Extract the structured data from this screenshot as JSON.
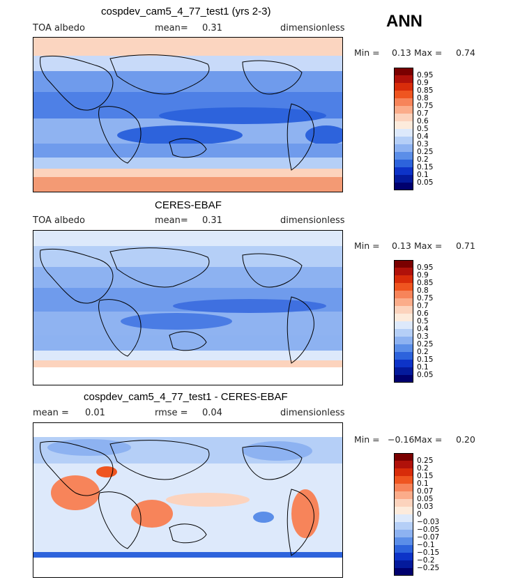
{
  "header": {
    "season": "ANN"
  },
  "panels": [
    {
      "title": "cospdev_cam5_4_77_test1 (yrs 2-3)",
      "left_label": "TOA albedo",
      "mean_label": "mean=",
      "mean_value": "0.31",
      "right_label": "dimensionless",
      "min_label": "Min =",
      "min_value": "0.13",
      "max_label": "Max =",
      "max_value": "0.74",
      "colorbar": {
        "levels": [
          "0.95",
          "0.9",
          "0.85",
          "0.8",
          "0.75",
          "0.7",
          "0.6",
          "0.5",
          "0.4",
          "0.3",
          "0.25",
          "0.2",
          "0.15",
          "0.1",
          "0.05"
        ],
        "colors": [
          "#7a0000",
          "#b0110a",
          "#d82c0a",
          "#ef5520",
          "#f7845a",
          "#fbac8a",
          "#fcd3bd",
          "#fdebdc",
          "#dde9fb",
          "#b5cff7",
          "#8db2f1",
          "#5b8ee8",
          "#2d63dc",
          "#0d33c8",
          "#041a9c",
          "#00006e"
        ]
      }
    },
    {
      "title": "CERES-EBAF",
      "left_label": "TOA albedo",
      "mean_label": "mean=",
      "mean_value": "0.31",
      "right_label": "dimensionless",
      "min_label": "Min =",
      "min_value": "0.13",
      "max_label": "Max =",
      "max_value": "0.71",
      "colorbar": {
        "levels": [
          "0.95",
          "0.9",
          "0.85",
          "0.8",
          "0.75",
          "0.7",
          "0.6",
          "0.5",
          "0.4",
          "0.3",
          "0.25",
          "0.2",
          "0.15",
          "0.1",
          "0.05"
        ],
        "colors": [
          "#7a0000",
          "#b0110a",
          "#d82c0a",
          "#ef5520",
          "#f7845a",
          "#fbac8a",
          "#fcd3bd",
          "#fdebdc",
          "#dde9fb",
          "#b5cff7",
          "#8db2f1",
          "#5b8ee8",
          "#2d63dc",
          "#0d33c8",
          "#041a9c",
          "#00006e"
        ]
      }
    },
    {
      "title": "cospdev_cam5_4_77_test1 - CERES-EBAF",
      "left_label": "mean =",
      "left_value": "0.01",
      "mean_label": "rmse =",
      "mean_value": "0.04",
      "right_label": "dimensionless",
      "min_label": "Min =",
      "min_value": "−0.16",
      "max_label": "Max =",
      "max_value": "0.20",
      "colorbar": {
        "levels": [
          "0.25",
          "0.2",
          "0.15",
          "0.1",
          "0.07",
          "0.05",
          "0.03",
          "0",
          "−0.03",
          "−0.05",
          "−0.07",
          "−0.1",
          "−0.15",
          "−0.2",
          "−0.25"
        ],
        "colors": [
          "#7a0000",
          "#b0110a",
          "#d82c0a",
          "#ef5520",
          "#f7845a",
          "#fbac8a",
          "#fcd3bd",
          "#fdebdc",
          "#dde9fb",
          "#b5cff7",
          "#8db2f1",
          "#5b8ee8",
          "#2d63dc",
          "#0d33c8",
          "#041a9c",
          "#00006e"
        ]
      }
    }
  ]
}
